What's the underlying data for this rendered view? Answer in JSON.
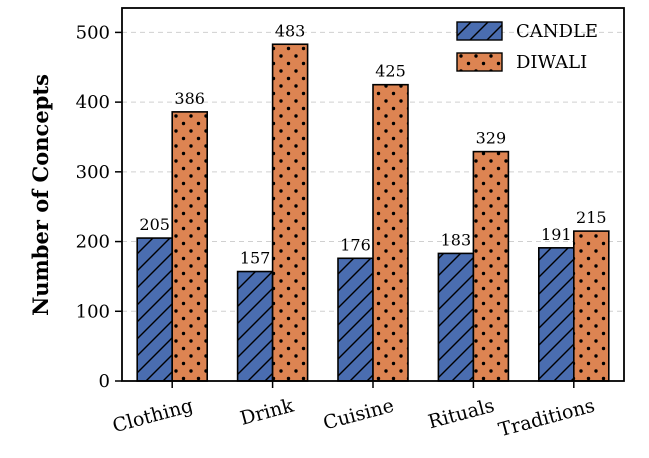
{
  "chart_data": {
    "type": "bar",
    "title": "",
    "xlabel": "",
    "ylabel": "Number of Concepts",
    "categories": [
      "Clothing",
      "Drink",
      "Cuisine",
      "Rituals",
      "Traditions"
    ],
    "series": [
      {
        "name": "CANDLE",
        "values": [
          205,
          157,
          176,
          183,
          191
        ],
        "color": "#4a6db0",
        "pattern": "hatch"
      },
      {
        "name": "DIWALI",
        "values": [
          386,
          483,
          425,
          329,
          215
        ],
        "color": "#dd8452",
        "pattern": "dots"
      }
    ],
    "ylim": [
      0,
      535
    ],
    "yticks": [
      0,
      100,
      200,
      300,
      400,
      500
    ],
    "grid": true,
    "legend_position": "top-right"
  }
}
